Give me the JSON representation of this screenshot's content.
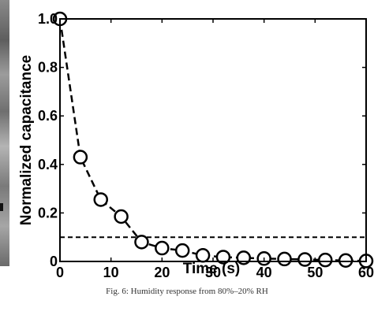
{
  "chart_data": {
    "type": "line",
    "xlabel": "Time (s)",
    "ylabel": "Normalized capacitance",
    "xlim": [
      0,
      60
    ],
    "ylim": [
      0,
      1.0
    ],
    "x_ticks": [
      0,
      10,
      20,
      30,
      40,
      50,
      60
    ],
    "y_ticks": [
      0,
      0.2,
      0.4,
      0.6,
      0.8,
      1.0
    ],
    "x_tick_labels": [
      "0",
      "10",
      "20",
      "30",
      "40",
      "50",
      "60"
    ],
    "y_tick_labels": [
      "0",
      "0.2",
      "0.4",
      "0.6",
      "0.8",
      "1.0"
    ],
    "grid": false,
    "series": [
      {
        "line_style": "dashed",
        "marker": "open-circle",
        "color": "#000000",
        "x": [
          0,
          4,
          8,
          12,
          16,
          20,
          24,
          28,
          32,
          36,
          40,
          44,
          48,
          52,
          56,
          60
        ],
        "y": [
          1.0,
          0.43,
          0.255,
          0.185,
          0.08,
          0.055,
          0.045,
          0.025,
          0.018,
          0.015,
          0.012,
          0.01,
          0.008,
          0.006,
          0.004,
          0.002
        ]
      }
    ],
    "reference_lines": [
      {
        "axis": "y",
        "value": 0.1,
        "style": "dashed",
        "color": "#000000"
      }
    ]
  },
  "caption": "Fig. 6: Humidity response from 80%–20% RH"
}
